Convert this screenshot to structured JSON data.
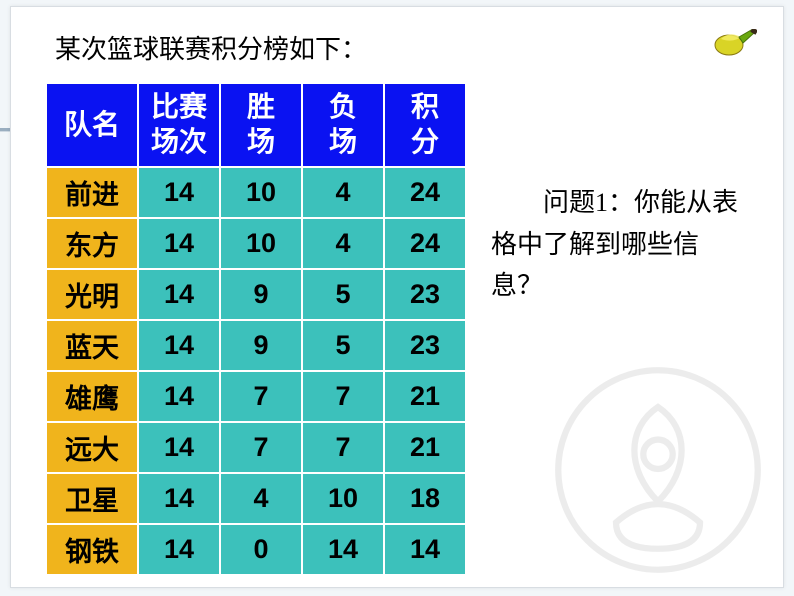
{
  "title": "某次篮球联赛积分榜如下：",
  "question": "问题1：你能从表格中了解到哪些信息？",
  "table": {
    "header_bg": "#0a12f2",
    "header_fg": "#ffffff",
    "name_bg": "#f0b41c",
    "name_fg": "#000000",
    "cell_bg": "#3cc1bb",
    "cell_fg": "#000000",
    "col_widths": {
      "name": 92,
      "other": 82
    },
    "columns": [
      "队名",
      "比赛场次",
      "胜场",
      "负场",
      "积分"
    ],
    "header_lines": [
      [
        "队名"
      ],
      [
        "比赛",
        "场次"
      ],
      [
        "胜",
        "场"
      ],
      [
        "负",
        "场"
      ],
      [
        "积",
        "分"
      ]
    ],
    "rows": [
      {
        "name": "前进",
        "values": [
          "14",
          "10",
          "4",
          "24"
        ]
      },
      {
        "name": "东方",
        "values": [
          "14",
          "10",
          "4",
          "24"
        ]
      },
      {
        "name": "光明",
        "values": [
          "14",
          "9",
          "5",
          "23"
        ]
      },
      {
        "name": "蓝天",
        "values": [
          "14",
          "9",
          "5",
          "23"
        ]
      },
      {
        "name": "雄鹰",
        "values": [
          "14",
          "7",
          "7",
          "21"
        ]
      },
      {
        "name": "远大",
        "values": [
          "14",
          "7",
          "7",
          "21"
        ]
      },
      {
        "name": "卫星",
        "values": [
          "14",
          "4",
          "10",
          "18"
        ]
      },
      {
        "name": "钢铁",
        "values": [
          "14",
          "0",
          "14",
          "14"
        ]
      }
    ]
  },
  "colors": {
    "slide_bg": "#ffffff",
    "page_bg": "#f2f6f9",
    "brush_yellow": "#d9d426",
    "brush_green": "#6aa80f",
    "brush_handle": "#3a2a1a"
  }
}
